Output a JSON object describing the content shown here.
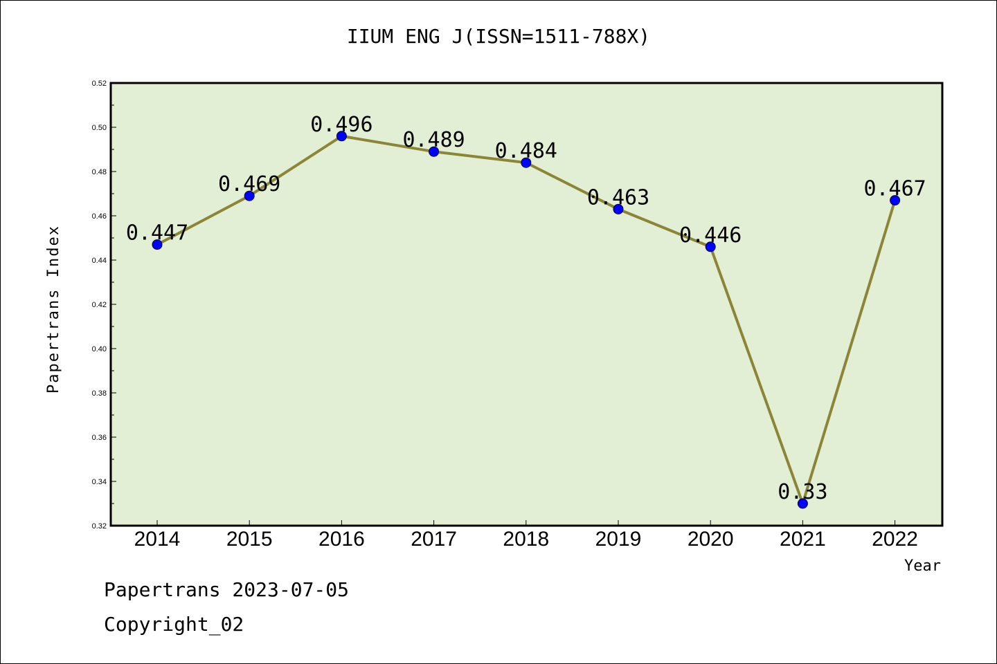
{
  "chart_data": {
    "type": "line",
    "title": "IIUM ENG J(ISSN=1511-788X)",
    "xlabel": "Year",
    "ylabel": "Papertrans Index",
    "categories": [
      "2014",
      "2015",
      "2016",
      "2017",
      "2018",
      "2019",
      "2020",
      "2021",
      "2022"
    ],
    "values": [
      0.447,
      0.469,
      0.496,
      0.489,
      0.484,
      0.463,
      0.446,
      0.33,
      0.467
    ],
    "data_labels": [
      "0.447",
      "0.469",
      "0.496",
      "0.489",
      "0.484",
      "0.463",
      "0.446",
      "0.33",
      "0.467"
    ],
    "ylim": [
      0.32,
      0.52
    ],
    "yticks": [
      "0.32",
      "0.34",
      "0.36",
      "0.38",
      "0.40",
      "0.42",
      "0.44",
      "0.46",
      "0.48",
      "0.50",
      "0.52"
    ],
    "grid": false,
    "colors": {
      "line": "#8B8637",
      "marker": "#0000FF",
      "plot_bg": "#E2EFD5"
    }
  },
  "footer": {
    "line1": "Papertrans 2023-07-05",
    "line2": "Copyright_02"
  }
}
